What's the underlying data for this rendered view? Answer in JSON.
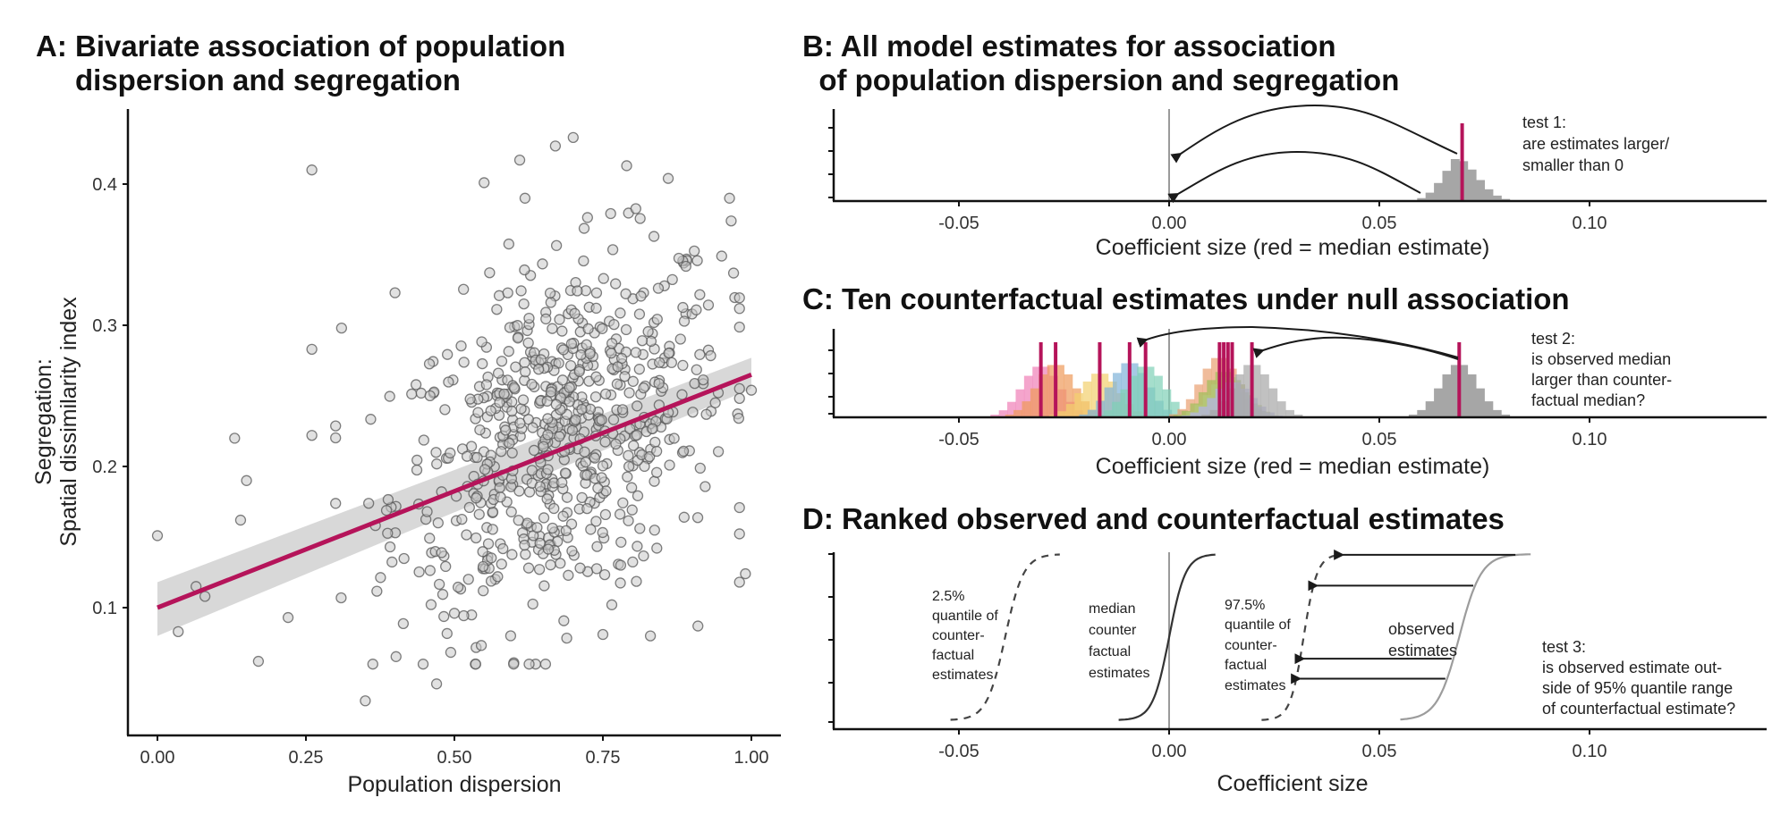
{
  "colors": {
    "median_red": "#b5145a",
    "point_fill": "#c8c8c8",
    "point_stroke": "#555555",
    "ci_band": "#d4d4d4",
    "observed_hist": "#a6a6a6",
    "zero_line": "#9a9a9a",
    "cf_palette": [
      "#ef7fb6",
      "#ee9a5a",
      "#f2d06e",
      "#7fb2d8",
      "#7fd0b6",
      "#e9a070",
      "#9fbf5a",
      "#b3c97a",
      "#b4b4e8",
      "#a6a6a6"
    ]
  },
  "chart_data": [
    {
      "id": "A",
      "type": "scatter",
      "title_lines": [
        "A: Bivariate association of population",
        "dispersion and segregation"
      ],
      "xlabel": "Population dispersion",
      "ylabel_lines": [
        "Segregation:",
        "Spatial dissimilarity index"
      ],
      "xlim": [
        -0.05,
        1.05
      ],
      "ylim": [
        0.015,
        0.45
      ],
      "xticks": [
        0.0,
        0.25,
        0.5,
        0.75,
        1.0
      ],
      "xtick_labels": [
        "0.00",
        "0.25",
        "0.50",
        "0.75",
        "1.00"
      ],
      "yticks": [
        0.1,
        0.2,
        0.3,
        0.4
      ],
      "ytick_labels": [
        "0.1",
        "0.2",
        "0.3",
        "0.4"
      ],
      "n_points_approx": 700,
      "regression": {
        "x": [
          0.0,
          1.0
        ],
        "y": [
          0.1,
          0.265
        ],
        "ci_low": [
          0.08,
          0.255
        ],
        "ci_high": [
          0.118,
          0.277
        ]
      },
      "outlier_points": [
        [
          0.0,
          0.151
        ],
        [
          0.035,
          0.083
        ],
        [
          0.065,
          0.115
        ],
        [
          0.08,
          0.108
        ],
        [
          0.13,
          0.22
        ],
        [
          0.14,
          0.162
        ],
        [
          0.15,
          0.19
        ],
        [
          0.17,
          0.062
        ],
        [
          0.22,
          0.093
        ],
        [
          0.26,
          0.41
        ],
        [
          0.26,
          0.283
        ],
        [
          0.26,
          0.222
        ],
        [
          0.31,
          0.298
        ],
        [
          0.35,
          0.034
        ],
        [
          0.4,
          0.323
        ],
        [
          0.47,
          0.046
        ],
        [
          0.5,
          0.096
        ],
        [
          0.55,
          0.401
        ],
        [
          0.6,
          0.061
        ],
        [
          0.61,
          0.417
        ],
        [
          0.67,
          0.427
        ],
        [
          0.7,
          0.433
        ],
        [
          0.75,
          0.081
        ],
        [
          0.79,
          0.413
        ],
        [
          0.86,
          0.404
        ],
        [
          0.91,
          0.087
        ],
        [
          0.95,
          0.349
        ],
        [
          0.97,
          0.337
        ],
        [
          0.99,
          0.124
        ],
        [
          1.0,
          0.254
        ],
        [
          0.83,
          0.08
        ]
      ],
      "grid": false
    },
    {
      "id": "B",
      "type": "bar",
      "subtype": "histogram",
      "title_lines": [
        "B: All model estimates for association",
        "  of population dispersion and segregation"
      ],
      "xlabel": "Coefficient size (red = median estimate)",
      "xlim": [
        -0.085,
        0.138
      ],
      "xticks": [
        -0.05,
        0.0,
        0.05,
        0.1
      ],
      "xtick_labels": [
        "-0.05",
        "0.00",
        "0.05",
        "0.10"
      ],
      "bin_width": 0.002,
      "bin_starts": [
        0.057,
        0.059,
        0.061,
        0.063,
        0.065,
        0.067,
        0.069,
        0.071,
        0.073,
        0.075,
        0.077,
        0.079,
        0.081
      ],
      "bin_heights_rel": [
        0.02,
        0.07,
        0.2,
        0.43,
        0.72,
        1.0,
        0.95,
        0.75,
        0.5,
        0.28,
        0.13,
        0.05,
        0.02
      ],
      "median": 0.0697,
      "reference_line": 0.0,
      "annotation_lines": [
        "test 1:",
        "are estimates larger/",
        "smaller than 0"
      ]
    },
    {
      "id": "C",
      "type": "bar",
      "subtype": "histogram",
      "title_lines": [
        "C: Ten counterfactual estimates under null association"
      ],
      "xlabel": "Coefficient size (red = median estimate)",
      "xlim": [
        -0.085,
        0.138
      ],
      "xticks": [
        -0.05,
        0.0,
        0.05,
        0.1
      ],
      "xtick_labels": [
        "-0.05",
        "0.00",
        "0.05",
        "0.10"
      ],
      "counterfactual_medians": [
        -0.0305,
        -0.027,
        -0.0165,
        -0.0094,
        -0.0056,
        0.012,
        0.013,
        0.014,
        0.015,
        0.0197
      ],
      "counterfactual_sd": 0.0045,
      "observed_median": 0.069,
      "reference_line": 0.0,
      "annotation_lines": [
        "test 2:",
        "is observed median",
        "larger than counter-",
        "factual median?"
      ]
    },
    {
      "id": "D",
      "type": "line",
      "title_lines": [
        "D: Ranked observed and counterfactual estimates"
      ],
      "xlabel": "Coefficient size",
      "xlim": [
        -0.085,
        0.138
      ],
      "xticks": [
        -0.05,
        0.0,
        0.05,
        0.1
      ],
      "xtick_labels": [
        "-0.05",
        "0.00",
        "0.05",
        "0.10"
      ],
      "series": [
        {
          "name": "2.5% quantile of counterfactual estimates",
          "style": "dashed",
          "range": [
            -0.052,
            -0.026
          ],
          "center": -0.039
        },
        {
          "name": "median counterfactual estimates",
          "style": "solid",
          "range": [
            -0.012,
            0.011
          ],
          "center": 0.0
        },
        {
          "name": "97.5% quantile of counterfactual estimates",
          "style": "dashed",
          "range": [
            0.022,
            0.041
          ],
          "center": 0.032
        },
        {
          "name": "observed estimates",
          "style": "solid-gray",
          "range": [
            0.055,
            0.086
          ],
          "center": 0.069
        }
      ],
      "series_labels": [
        [
          "2.5%",
          "quantile of",
          "counter-",
          "factual",
          "estimates"
        ],
        [
          "median",
          "counter",
          "factual",
          "estimates"
        ],
        [
          "97.5%",
          "quantile of",
          "counter-",
          "factual",
          "estimates"
        ],
        [
          "observed",
          "estimates"
        ]
      ],
      "arrow_rank_fractions": [
        0.995,
        0.81,
        0.37,
        0.25
      ],
      "reference_line": 0.0,
      "annotation_lines": [
        "test 3:",
        "is observed estimate out-",
        "side of 95% quantile range",
        "of counterfactual estimate?"
      ]
    }
  ]
}
